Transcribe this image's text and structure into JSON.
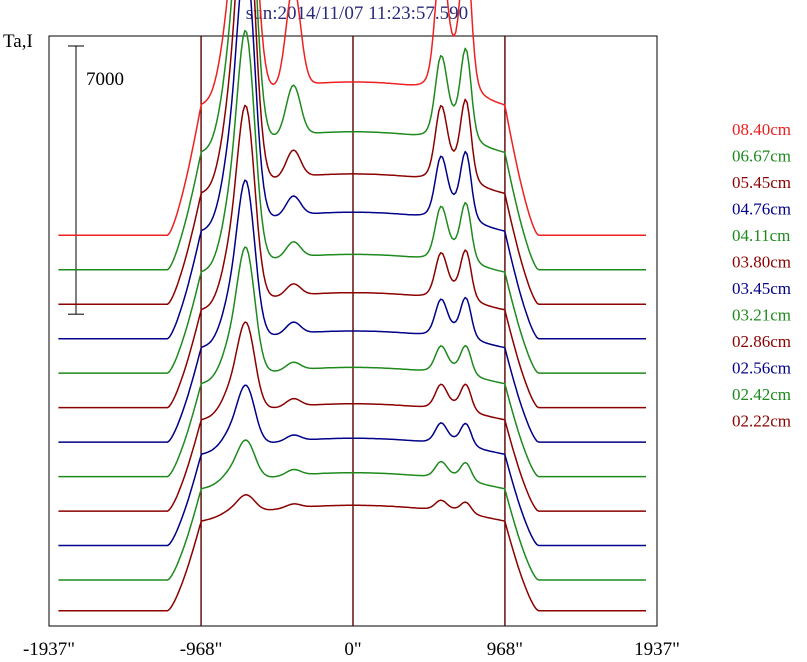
{
  "chart_data": {
    "type": "line",
    "title": "sun:2014/11/07 11:23:57.590",
    "ylabel": "Ta,I",
    "scale_bar_label": "7000",
    "scale_bar_value": 7000,
    "xlim": [
      -1937,
      1937
    ],
    "x_ticks": [
      -1937,
      -968,
      0,
      968,
      1937
    ],
    "x_tick_labels": [
      "-1937\"",
      "-968\"",
      "0\"",
      "968\"",
      "1937\""
    ],
    "vertical_markers": [
      -968,
      0,
      968
    ],
    "grid": false,
    "legend_position": "right",
    "colors": {
      "red": "#ee2020",
      "green": "#1e8a1e",
      "darkred": "#8b0000",
      "navy": "#000088",
      "frame": "#000000",
      "marker": "#5a0000"
    },
    "series": [
      {
        "name": "08.40cm",
        "color": "#ee2020",
        "baseline": 9800,
        "peak": 12000,
        "rpeak": 7200,
        "plateau": 4000,
        "bump": 2600
      },
      {
        "name": "06.67cm",
        "color": "#1e8a1e",
        "baseline": 8900,
        "peak": 11500,
        "rpeak": 5600,
        "plateau": 3600,
        "bump": 1300
      },
      {
        "name": "05.45cm",
        "color": "#8b0000",
        "baseline": 8000,
        "peak": 10800,
        "rpeak": 5200,
        "plateau": 3400,
        "bump": 700
      },
      {
        "name": "04.76cm",
        "color": "#000088",
        "baseline": 7100,
        "peak": 9800,
        "rpeak": 4800,
        "plateau": 3300,
        "bump": 500
      },
      {
        "name": "04.11cm",
        "color": "#1e8a1e",
        "baseline": 6200,
        "peak": 8800,
        "rpeak": 4400,
        "plateau": 3100,
        "bump": 400
      },
      {
        "name": "03.80cm",
        "color": "#8b0000",
        "baseline": 5300,
        "peak": 7800,
        "rpeak": 4100,
        "plateau": 3000,
        "bump": 300
      },
      {
        "name": "03.45cm",
        "color": "#000088",
        "baseline": 4400,
        "peak": 6800,
        "rpeak": 3800,
        "plateau": 2900,
        "bump": 300
      },
      {
        "name": "03.21cm",
        "color": "#1e8a1e",
        "baseline": 3500,
        "peak": 6000,
        "rpeak": 3500,
        "plateau": 2850,
        "bump": 200
      },
      {
        "name": "02.86cm",
        "color": "#8b0000",
        "baseline": 2600,
        "peak": 5000,
        "rpeak": 3400,
        "plateau": 2800,
        "bump": 200
      },
      {
        "name": "02.56cm",
        "color": "#000088",
        "baseline": 1700,
        "peak": 4300,
        "rpeak": 3300,
        "plateau": 2800,
        "bump": 150
      },
      {
        "name": "02.42cm",
        "color": "#1e8a1e",
        "baseline": 800,
        "peak": 3800,
        "rpeak": 3200,
        "plateau": 2800,
        "bump": 150
      },
      {
        "name": "02.22cm",
        "color": "#8b0000",
        "baseline": 0,
        "peak": 3200,
        "rpeak": 3000,
        "plateau": 2750,
        "bump": 100
      }
    ],
    "ylim": [
      -400,
      15000
    ]
  }
}
